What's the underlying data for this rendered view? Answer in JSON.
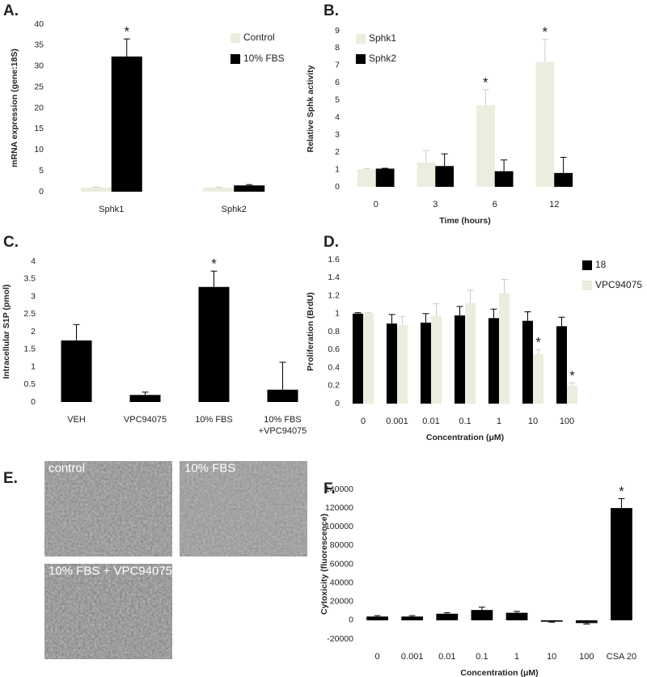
{
  "chart_data": [
    {
      "type": "bar",
      "panel": "A.",
      "ylabel": "mRNA expression (gene:18S)",
      "categories": [
        "Sphk1",
        "Sphk2"
      ],
      "series": [
        {
          "name": "Control",
          "color": "#ececdf",
          "values": [
            1,
            1
          ],
          "errors": [
            0.1,
            0.1
          ]
        },
        {
          "name": "10% FBS",
          "color": "#000000",
          "values": [
            32.3,
            1.5
          ],
          "errors": [
            4.2,
            0.2
          ]
        }
      ],
      "ylim": [
        0,
        40
      ],
      "yticks": [
        0,
        5,
        10,
        15,
        20,
        25,
        30,
        35,
        40
      ],
      "annotations": [
        {
          "text": "*",
          "category": "Sphk1",
          "series": "10% FBS"
        }
      ]
    },
    {
      "type": "bar",
      "panel": "B.",
      "ylabel": "Relative Sphk activity",
      "xlabel": "Time (hours)",
      "categories": [
        "0",
        "3",
        "6",
        "12"
      ],
      "series": [
        {
          "name": "Sphk1",
          "color": "#ececdf",
          "values": [
            1,
            1.4,
            4.7,
            7.2
          ],
          "errors": [
            0.05,
            0.7,
            0.9,
            1.3
          ]
        },
        {
          "name": "Sphk2",
          "color": "#000000",
          "values": [
            1.05,
            1.2,
            0.9,
            0.8
          ],
          "errors": [
            0.02,
            0.7,
            0.65,
            0.9
          ]
        }
      ],
      "ylim": [
        0,
        9
      ],
      "yticks": [
        0,
        1,
        2,
        3,
        4,
        5,
        6,
        7,
        8,
        9
      ],
      "annotations": [
        {
          "text": "*",
          "category": "6",
          "series": "Sphk1"
        },
        {
          "text": "*",
          "category": "12",
          "series": "Sphk1"
        }
      ]
    },
    {
      "type": "bar",
      "panel": "C.",
      "ylabel": "Intracellular S1P (pmol)",
      "categories": [
        "VEH",
        "VPC94075",
        "10% FBS",
        "10% FBS\n+VPC94075"
      ],
      "series": [
        {
          "color": "#000000",
          "values": [
            1.75,
            0.2,
            3.27,
            0.35
          ],
          "errors": [
            0.45,
            0.08,
            0.45,
            0.78
          ]
        }
      ],
      "ylim": [
        0,
        4
      ],
      "yticks": [
        0,
        0.5,
        1,
        1.5,
        2,
        2.5,
        3,
        3.5,
        4
      ],
      "annotations": [
        {
          "text": "*",
          "category": "10% FBS"
        }
      ]
    },
    {
      "type": "bar",
      "panel": "D.",
      "ylabel": "Proliferation (BrdU)",
      "xlabel": "Concentration (μM)",
      "categories": [
        "0",
        "0.001",
        "0.01",
        "0.1",
        "1",
        "10",
        "100"
      ],
      "series": [
        {
          "name": "18",
          "color": "#000000",
          "values": [
            1.0,
            0.89,
            0.9,
            0.98,
            0.95,
            0.92,
            0.86
          ],
          "errors": [
            0.01,
            0.1,
            0.1,
            0.1,
            0.1,
            0.1,
            0.1
          ]
        },
        {
          "name": "VPC94075",
          "color": "#ececdf",
          "values": [
            1.0,
            0.87,
            0.97,
            1.12,
            1.23,
            0.55,
            0.2
          ],
          "errors": [
            0.01,
            0.1,
            0.14,
            0.14,
            0.15,
            0.05,
            0.03
          ]
        }
      ],
      "ylim": [
        0,
        1.6
      ],
      "yticks": [
        0,
        0.2,
        0.4,
        0.6,
        0.8,
        1,
        1.2,
        1.4,
        1.6
      ],
      "annotations": [
        {
          "text": "*",
          "category": "10",
          "series": "VPC94075"
        },
        {
          "text": "*",
          "category": "100",
          "series": "VPC94075"
        }
      ]
    },
    {
      "type": "bar",
      "panel": "F.",
      "ylabel": "Cytoxicity (fluorescence)",
      "xlabel": "Concentration (μM)",
      "categories": [
        "0",
        "0.001",
        "0.01",
        "0.1",
        "1",
        "10",
        "100",
        "CSA 20"
      ],
      "series": [
        {
          "color": "#000000",
          "values": [
            4000,
            4000,
            7000,
            11000,
            8000,
            -1500,
            -3000,
            120000
          ],
          "errors": [
            1000,
            1000,
            1000,
            3000,
            1500,
            500,
            1000,
            10000
          ]
        }
      ],
      "ylim": [
        -20000,
        140000
      ],
      "yticks": [
        -20000,
        0,
        20000,
        40000,
        60000,
        80000,
        100000,
        120000,
        140000
      ],
      "annotations": [
        {
          "text": "*",
          "category": "CSA 20"
        }
      ]
    }
  ],
  "panel_e": {
    "letter": "E.",
    "images": [
      {
        "label": "control"
      },
      {
        "label": "10% FBS"
      },
      {
        "label": "10% FBS + VPC94075"
      }
    ]
  }
}
